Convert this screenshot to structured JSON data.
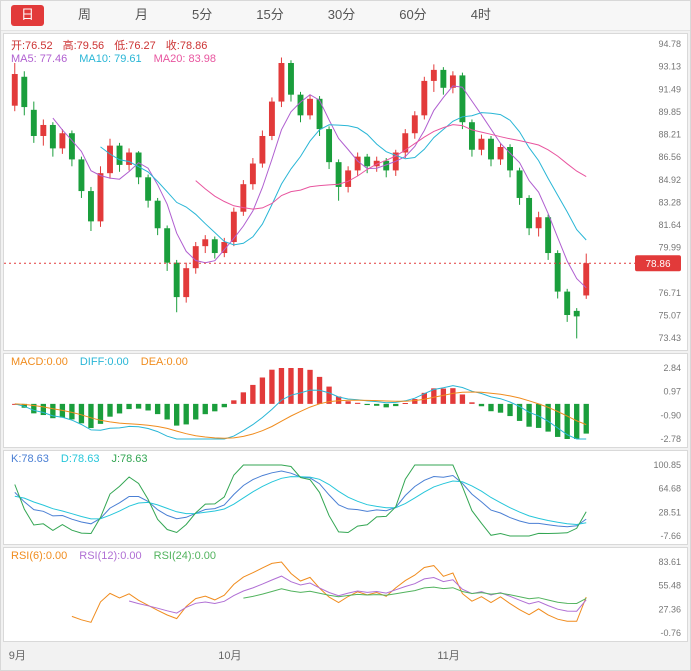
{
  "toolbar": {
    "tabs": [
      {
        "label": "日",
        "active": true
      },
      {
        "label": "周",
        "active": false
      },
      {
        "label": "月",
        "active": false
      },
      {
        "label": "5分",
        "active": false
      },
      {
        "label": "15分",
        "active": false
      },
      {
        "label": "30分",
        "active": false
      },
      {
        "label": "60分",
        "active": false
      },
      {
        "label": "4时",
        "active": false
      }
    ]
  },
  "colors": {
    "up": "#e23a3a",
    "down": "#1a9e3c",
    "ohlc_text": "#cc3333",
    "ma5": "#b05fd0",
    "ma10": "#29b6d6",
    "ma20": "#e8559f",
    "macd_label": "#f08c1e",
    "diff": "#29b6d6",
    "dea": "#f08c1e",
    "k": "#4a7fd4",
    "d": "#26c6da",
    "j": "#33a653",
    "rsi6": "#f08c1e",
    "rsi12": "#b06fd4",
    "rsi24": "#52b35e",
    "axis_text": "#777777",
    "price_badge_bg": "#e23a3a",
    "price_badge_text": "#ffffff"
  },
  "main_chart": {
    "legend_ohlc": [
      {
        "label": "开:76.52",
        "color_key": "ohlc_text"
      },
      {
        "label": "高:79.56",
        "color_key": "ohlc_text"
      },
      {
        "label": "低:76.27",
        "color_key": "ohlc_text"
      },
      {
        "label": "收:78.86",
        "color_key": "ohlc_text"
      }
    ],
    "legend_ma": [
      {
        "label": "MA5: 77.46",
        "color_key": "ma5"
      },
      {
        "label": "MA10: 79.61",
        "color_key": "ma10"
      },
      {
        "label": "MA20: 83.98",
        "color_key": "ma20"
      }
    ],
    "axis_ticks": [
      94.78,
      93.13,
      91.49,
      89.85,
      88.21,
      86.56,
      84.92,
      83.28,
      81.64,
      79.99,
      76.71,
      75.07,
      73.43
    ],
    "range": {
      "min": 73.43,
      "max": 94.78
    },
    "price_marker": {
      "value": 78.86,
      "label": "78.86"
    }
  },
  "macd_panel": {
    "legend": [
      {
        "label": "MACD:0.00",
        "color_key": "macd_label"
      },
      {
        "label": "DIFF:0.00",
        "color_key": "diff"
      },
      {
        "label": "DEA:0.00",
        "color_key": "dea"
      }
    ],
    "axis_ticks": [
      2.84,
      0.97,
      -0.9,
      -2.78
    ],
    "range": {
      "min": -2.78,
      "max": 2.84
    }
  },
  "kdj_panel": {
    "legend": [
      {
        "label": "K:78.63",
        "color_key": "k"
      },
      {
        "label": "D:78.63",
        "color_key": "d"
      },
      {
        "label": "J:78.63",
        "color_key": "j"
      }
    ],
    "axis_ticks": [
      100.85,
      64.68,
      28.51,
      -7.66
    ],
    "range": {
      "min": -7.66,
      "max": 100.85
    }
  },
  "rsi_panel": {
    "legend": [
      {
        "label": "RSI(6):0.00",
        "color_key": "rsi6"
      },
      {
        "label": "RSI(12):0.00",
        "color_key": "rsi12"
      },
      {
        "label": "RSI(24):0.00",
        "color_key": "rsi24"
      }
    ],
    "axis_ticks": [
      83.61,
      55.48,
      27.36,
      -0.76
    ],
    "range": {
      "min": -0.76,
      "max": 83.61
    }
  },
  "x_axis": {
    "labels": [
      {
        "label": "9月",
        "index": 0
      },
      {
        "label": "10月",
        "index": 22
      },
      {
        "label": "11月",
        "index": 45
      }
    ]
  },
  "chart_data": {
    "type": "candlestick",
    "title": "Daily OHLC with MA5/MA10/MA20, MACD(12,26,9), KDJ(9,3,3), RSI(6,12,24)",
    "ohlc_header": {
      "open": 76.52,
      "high": 79.56,
      "low": 76.27,
      "close": 78.86
    },
    "ma_values": {
      "ma5": 77.46,
      "ma10": 79.61,
      "ma20": 83.98
    },
    "kdj_values": {
      "k": 78.63,
      "d": 78.63,
      "j": 78.63
    },
    "price_axis_range": [
      73.43,
      94.78
    ],
    "macd_axis_range": [
      -2.78,
      2.84
    ],
    "kdj_axis_range": [
      -7.66,
      100.85
    ],
    "rsi_axis_range": [
      -0.76,
      83.61
    ],
    "last_price": 78.86,
    "months": [
      "9月",
      "10月",
      "11月"
    ],
    "candles": [
      [
        90.3,
        93.4,
        89.9,
        92.6
      ],
      [
        92.4,
        92.8,
        89.6,
        90.2
      ],
      [
        90.0,
        90.6,
        87.6,
        88.1
      ],
      [
        88.1,
        89.3,
        87.4,
        88.9
      ],
      [
        88.9,
        89.1,
        86.6,
        87.2
      ],
      [
        87.2,
        88.6,
        86.8,
        88.3
      ],
      [
        88.3,
        88.5,
        85.9,
        86.4
      ],
      [
        86.4,
        86.6,
        83.6,
        84.1
      ],
      [
        84.1,
        84.4,
        81.2,
        81.9
      ],
      [
        81.9,
        85.9,
        81.5,
        85.4
      ],
      [
        85.4,
        87.9,
        85.0,
        87.4
      ],
      [
        87.4,
        87.6,
        85.5,
        86.0
      ],
      [
        86.0,
        87.2,
        85.6,
        86.9
      ],
      [
        86.9,
        87.0,
        84.6,
        85.1
      ],
      [
        85.1,
        85.3,
        82.9,
        83.4
      ],
      [
        83.4,
        83.6,
        80.9,
        81.4
      ],
      [
        81.4,
        81.6,
        78.3,
        78.9
      ],
      [
        78.9,
        79.1,
        75.3,
        76.4
      ],
      [
        76.4,
        78.9,
        76.0,
        78.5
      ],
      [
        78.5,
        80.4,
        78.1,
        80.1
      ],
      [
        80.1,
        80.9,
        79.6,
        80.6
      ],
      [
        80.6,
        80.8,
        79.2,
        79.6
      ],
      [
        79.6,
        80.7,
        79.3,
        80.4
      ],
      [
        80.4,
        82.9,
        80.1,
        82.6
      ],
      [
        82.6,
        84.9,
        82.3,
        84.6
      ],
      [
        84.6,
        86.5,
        84.2,
        86.1
      ],
      [
        86.1,
        88.5,
        85.8,
        88.1
      ],
      [
        88.1,
        90.9,
        87.8,
        90.6
      ],
      [
        90.6,
        93.8,
        90.2,
        93.4
      ],
      [
        93.4,
        93.6,
        90.6,
        91.1
      ],
      [
        91.1,
        91.3,
        89.1,
        89.6
      ],
      [
        89.6,
        91.1,
        89.3,
        90.8
      ],
      [
        90.8,
        91.0,
        88.1,
        88.6
      ],
      [
        88.6,
        88.8,
        85.7,
        86.2
      ],
      [
        86.2,
        86.4,
        83.4,
        84.4
      ],
      [
        84.4,
        85.9,
        84.0,
        85.6
      ],
      [
        85.6,
        86.9,
        85.2,
        86.6
      ],
      [
        86.6,
        86.8,
        85.4,
        85.9
      ],
      [
        85.9,
        86.6,
        85.5,
        86.3
      ],
      [
        86.3,
        86.5,
        85.1,
        85.6
      ],
      [
        85.6,
        87.1,
        85.2,
        86.9
      ],
      [
        86.9,
        88.6,
        86.5,
        88.3
      ],
      [
        88.3,
        89.9,
        87.9,
        89.6
      ],
      [
        89.6,
        92.4,
        89.3,
        92.1
      ],
      [
        92.1,
        93.3,
        91.3,
        92.9
      ],
      [
        92.9,
        93.1,
        91.1,
        91.6
      ],
      [
        91.6,
        92.8,
        91.2,
        92.5
      ],
      [
        92.5,
        92.7,
        88.6,
        89.1
      ],
      [
        89.1,
        89.3,
        86.6,
        87.1
      ],
      [
        87.1,
        88.2,
        86.7,
        87.9
      ],
      [
        87.9,
        88.1,
        85.9,
        86.4
      ],
      [
        86.4,
        87.6,
        86.0,
        87.3
      ],
      [
        87.3,
        87.5,
        85.1,
        85.6
      ],
      [
        85.6,
        85.8,
        83.1,
        83.6
      ],
      [
        83.6,
        83.8,
        80.9,
        81.4
      ],
      [
        81.4,
        82.6,
        80.8,
        82.2
      ],
      [
        82.2,
        82.4,
        79.1,
        79.6
      ],
      [
        79.6,
        79.8,
        76.3,
        76.8
      ],
      [
        76.8,
        77.0,
        74.6,
        75.1
      ],
      [
        75.4,
        75.6,
        73.4,
        75.0
      ],
      [
        76.52,
        79.56,
        76.27,
        78.86
      ]
    ]
  }
}
